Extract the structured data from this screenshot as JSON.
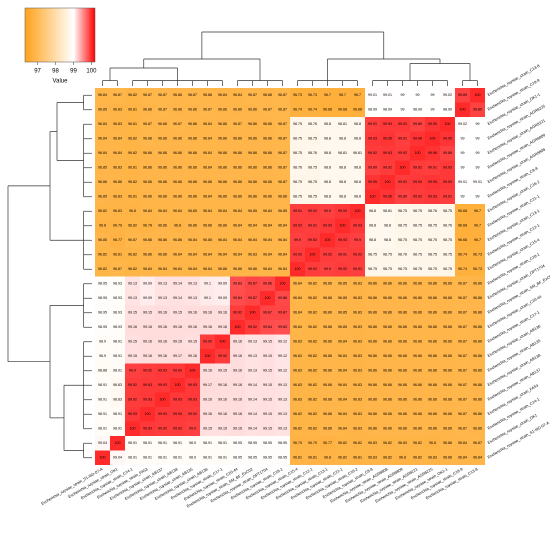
{
  "chart_data": {
    "type": "heatmap",
    "labels": [
      "Escherichia_ruysiae_strain_C13-8",
      "Escherichia_ruysiae_strain_C19-9",
      "Escherichia_ruysiae_strain_OK1-1",
      "Escherichia_ruysiae_strain_AGR8225",
      "Escherichia_ruysiae_strain_AGR8221",
      "Escherichia_ruysiae_strain_AGR8809",
      "Escherichia_ruysiae_strain_AGR8808",
      "Escherichia_ruysiae_strain_C8-8",
      "Escherichia_ruysiae_strain_C16-2",
      "Escherichia_ruysiae_strain_C21-1",
      "Escherichia_ruysiae_strain_C13-1",
      "Escherichia_ruysiae_strain_C12-1",
      "Escherichia_ruysiae_strain_C15-4",
      "Escherichia_ruysiae_strain_C18-1",
      "Escherichia_ruysiae_strain_OPT1704",
      "Escherichia_ruysiae_strain_SM_BF_ExC02",
      "Escherichia_ruysiae_strain_C20-44",
      "Escherichia_ruysiae_strain_C17-1",
      "Escherichia_ruysiae_strain_AB136",
      "Escherichia_ruysiae_strain_AB135",
      "Escherichia_ruysiae_strain_AB138",
      "Escherichia_ruysiae_strain_AB137",
      "Escherichia_ruysiae_strain_FA53",
      "Escherichia_ruysiae_strain_C14-1",
      "Escherichia_ruysiae_strain_OK1",
      "Escherichia_ruysiae_strain_S1-IIID-07-A"
    ],
    "values": [
      [
        96.84,
        96.87,
        96.82,
        96.87,
        96.87,
        96.86,
        96.87,
        96.86,
        96.84,
        96.84,
        96.87,
        96.86,
        96.87,
        96.73,
        96.73,
        96.7,
        96.7,
        96.7,
        99.01,
        99.01,
        99,
        99,
        99,
        99.02,
        99.89,
        100
      ],
      [
        96.85,
        96.83,
        96.81,
        96.86,
        96.87,
        96.86,
        96.86,
        96.87,
        96.86,
        96.86,
        96.86,
        96.87,
        96.87,
        96.74,
        96.74,
        96.68,
        96.68,
        96.68,
        98.99,
        98.99,
        99,
        98.99,
        99,
        98.99,
        100,
        99.89
      ],
      [
        96.84,
        96.83,
        96.81,
        96.87,
        96.86,
        96.87,
        96.86,
        96.84,
        96.86,
        96.87,
        96.86,
        96.86,
        96.87,
        98.75,
        98.76,
        98.8,
        98.81,
        98.8,
        99.91,
        99.93,
        99.93,
        99.89,
        99.95,
        100,
        99.02,
        99
      ],
      [
        96.84,
        96.84,
        96.82,
        96.88,
        96.86,
        96.86,
        96.86,
        96.84,
        96.86,
        96.86,
        96.86,
        96.86,
        96.87,
        98.75,
        98.75,
        98.8,
        98.8,
        98.8,
        99.93,
        99.95,
        99.91,
        99.96,
        100,
        99.95,
        99,
        99
      ],
      [
        96.84,
        96.84,
        96.82,
        96.86,
        96.86,
        96.86,
        96.86,
        96.84,
        96.86,
        96.86,
        96.86,
        96.86,
        96.87,
        98.75,
        98.76,
        98.8,
        98.81,
        98.81,
        99.92,
        99.93,
        99.92,
        100,
        99.96,
        99.89,
        99,
        99
      ],
      [
        96.85,
        96.83,
        96.81,
        96.86,
        96.86,
        96.86,
        96.86,
        96.84,
        96.86,
        96.86,
        96.86,
        96.86,
        96.87,
        98.76,
        98.75,
        98.8,
        98.8,
        98.8,
        99.89,
        99.92,
        100,
        99.92,
        99.91,
        99.93,
        99,
        99
      ],
      [
        96.86,
        96.86,
        96.82,
        96.86,
        96.86,
        96.86,
        96.86,
        96.86,
        96.86,
        96.86,
        96.86,
        96.86,
        96.87,
        98.75,
        98.75,
        98.8,
        98.8,
        98.8,
        99.95,
        100,
        99.92,
        99.93,
        99.95,
        99.93,
        99.01,
        99.01
      ],
      [
        96.85,
        96.83,
        96.81,
        96.86,
        96.86,
        96.86,
        96.86,
        96.84,
        96.86,
        96.86,
        96.86,
        96.86,
        96.86,
        98.75,
        98.75,
        98.8,
        98.8,
        98.8,
        100,
        99.95,
        99.89,
        99.92,
        99.93,
        99.91,
        99,
        99
      ],
      [
        96.82,
        96.83,
        96.8,
        96.84,
        96.84,
        96.84,
        96.85,
        96.84,
        96.84,
        96.84,
        96.85,
        96.84,
        96.85,
        99.91,
        99.92,
        99.9,
        99.93,
        100,
        98.8,
        98.81,
        98.75,
        98.75,
        98.76,
        98.75,
        96.68,
        96.7
      ],
      [
        96.8,
        96.79,
        96.82,
        96.78,
        96.86,
        96.8,
        96.86,
        96.86,
        96.86,
        96.84,
        96.84,
        96.84,
        96.84,
        99.92,
        99.91,
        99.93,
        100,
        99.93,
        98.8,
        98.8,
        98.75,
        98.75,
        98.75,
        98.76,
        96.68,
        96.7
      ],
      [
        96.85,
        96.77,
        96.87,
        96.86,
        96.86,
        96.86,
        96.84,
        96.85,
        96.84,
        96.84,
        96.84,
        96.84,
        96.84,
        99.9,
        99.92,
        100,
        99.93,
        99.9,
        98.8,
        98.8,
        98.75,
        98.75,
        98.75,
        98.75,
        96.68,
        96.7
      ],
      [
        96.82,
        96.81,
        96.82,
        96.86,
        96.86,
        96.84,
        96.84,
        96.84,
        96.84,
        96.84,
        96.83,
        96.84,
        96.84,
        99.92,
        100,
        99.92,
        99.91,
        99.92,
        98.75,
        98.75,
        98.76,
        98.75,
        98.75,
        98.75,
        96.74,
        96.73
      ],
      [
        96.82,
        96.87,
        96.82,
        96.84,
        96.84,
        96.84,
        96.84,
        96.84,
        96.86,
        96.86,
        96.86,
        96.84,
        96.84,
        100,
        99.92,
        99.9,
        99.92,
        99.91,
        98.75,
        98.75,
        98.75,
        98.76,
        98.75,
        98.75,
        96.74,
        96.73
      ],
      [
        98.95,
        98.93,
        99.13,
        99.09,
        99.13,
        99.14,
        99.13,
        99.1,
        99.09,
        99.83,
        99.87,
        99.86,
        100,
        96.84,
        96.82,
        96.86,
        96.85,
        96.83,
        96.86,
        96.86,
        96.86,
        96.86,
        96.86,
        96.86,
        96.87,
        96.86
      ],
      [
        98.95,
        98.93,
        99.13,
        99.09,
        99.13,
        99.14,
        99.13,
        99.1,
        99.09,
        99.84,
        99.87,
        100,
        99.86,
        96.84,
        96.82,
        96.86,
        96.85,
        96.83,
        96.86,
        96.86,
        96.86,
        96.86,
        96.86,
        96.86,
        96.87,
        96.86
      ],
      [
        98.95,
        98.93,
        99.15,
        99.15,
        99.16,
        99.15,
        99.16,
        99.16,
        99.16,
        99.92,
        100,
        99.87,
        99.87,
        96.84,
        96.82,
        96.86,
        96.85,
        96.83,
        96.86,
        96.86,
        96.86,
        96.86,
        96.86,
        96.86,
        96.87,
        96.86
      ],
      [
        98.95,
        98.93,
        99.16,
        99.16,
        99.16,
        99.16,
        99.16,
        99.16,
        99.16,
        100,
        99.92,
        99.84,
        99.83,
        96.84,
        96.82,
        96.86,
        96.85,
        96.83,
        96.86,
        96.86,
        96.86,
        96.86,
        96.86,
        96.86,
        96.87,
        96.86
      ],
      [
        98.9,
        98.91,
        99.15,
        99.16,
        99.16,
        99.16,
        99.15,
        99.92,
        100,
        99.16,
        99.13,
        99.15,
        99.12,
        96.83,
        96.82,
        96.86,
        96.84,
        96.83,
        96.86,
        96.86,
        96.86,
        96.86,
        96.86,
        96.86,
        96.87,
        96.86
      ],
      [
        98.9,
        98.91,
        99.15,
        99.16,
        99.16,
        99.17,
        99.16,
        100,
        99.92,
        99.16,
        99.13,
        99.15,
        99.12,
        96.83,
        96.82,
        96.86,
        96.84,
        96.83,
        96.86,
        96.86,
        96.86,
        96.86,
        96.86,
        96.86,
        96.87,
        96.86
      ],
      [
        98.88,
        98.91,
        99.9,
        99.92,
        99.93,
        99.93,
        100,
        99.16,
        99.15,
        99.16,
        99.13,
        99.15,
        99.12,
        96.83,
        96.82,
        96.86,
        96.84,
        96.83,
        96.86,
        96.86,
        96.86,
        96.86,
        96.86,
        96.86,
        96.87,
        96.86
      ],
      [
        98.91,
        98.83,
        99.92,
        99.93,
        99.93,
        100,
        99.93,
        99.17,
        99.16,
        99.16,
        99.14,
        99.15,
        99.13,
        96.83,
        96.82,
        96.86,
        96.84,
        96.83,
        96.86,
        96.86,
        96.86,
        96.86,
        96.86,
        96.86,
        96.87,
        96.86
      ],
      [
        98.91,
        98.83,
        99.92,
        99.93,
        100,
        99.93,
        99.93,
        99.16,
        99.16,
        99.16,
        99.14,
        99.15,
        99.13,
        96.83,
        96.82,
        96.86,
        96.84,
        96.83,
        96.86,
        96.86,
        96.86,
        96.86,
        96.86,
        96.86,
        96.87,
        96.86
      ],
      [
        98.91,
        98.91,
        99.93,
        100,
        99.93,
        99.93,
        99.92,
        99.16,
        99.16,
        99.16,
        99.14,
        99.15,
        99.13,
        96.82,
        96.82,
        96.86,
        96.84,
        96.83,
        96.86,
        96.86,
        96.86,
        96.86,
        96.86,
        96.86,
        96.87,
        96.86
      ],
      [
        98.91,
        98.91,
        100,
        99.93,
        99.92,
        99.92,
        99.9,
        99.15,
        99.15,
        99.16,
        99.14,
        99.15,
        99.13,
        96.82,
        96.82,
        96.86,
        96.84,
        96.83,
        96.86,
        96.86,
        96.86,
        96.86,
        96.86,
        96.86,
        96.87,
        96.86
      ],
      [
        99.04,
        100,
        98.91,
        98.91,
        98.91,
        98.91,
        98.9,
        98.91,
        98.91,
        98.95,
        98.95,
        98.95,
        98.95,
        96.79,
        96.79,
        96.77,
        96.82,
        96.82,
        96.83,
        96.82,
        96.83,
        96.82,
        96.8,
        96.86,
        96.84,
        96.87
      ],
      [
        100,
        99.04,
        98.91,
        98.91,
        98.91,
        98.91,
        98.9,
        98.91,
        98.91,
        98.95,
        98.95,
        98.95,
        98.95,
        96.81,
        96.81,
        96.8,
        96.82,
        96.81,
        96.83,
        96.82,
        96.8,
        96.82,
        96.83,
        96.86,
        96.84,
        96.84
      ]
    ],
    "colorbar": {
      "label": "Value",
      "lim": [
        96.3,
        100.2
      ],
      "ticks": [
        97,
        98,
        99,
        100
      ],
      "colors": [
        {
          "value": 96.3,
          "color": "#ffa21a"
        },
        {
          "value": 99,
          "color": "#ffffff"
        },
        {
          "value": 100.2,
          "color": "#ff0000"
        }
      ]
    }
  }
}
